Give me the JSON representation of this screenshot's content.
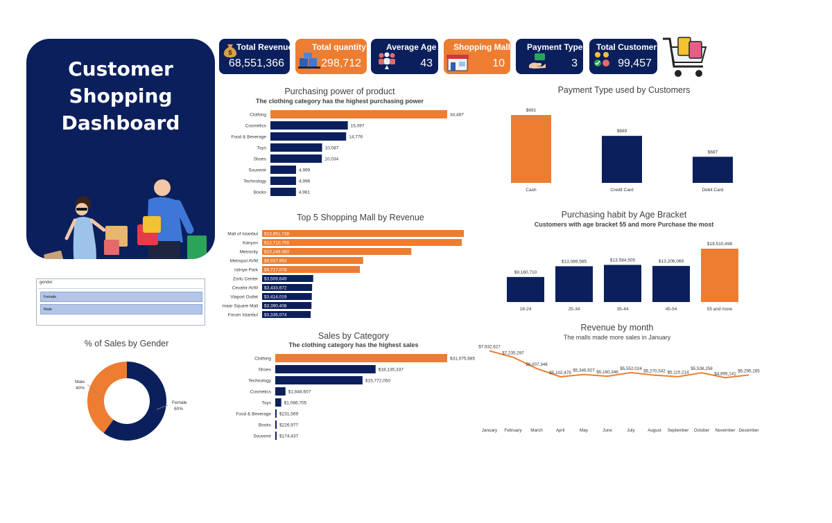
{
  "dashboard": {
    "title_line1": "Customer Shopping",
    "title_line2": "Dashboard"
  },
  "kpis": [
    {
      "label": "Total Revenue",
      "value": "68,551,366",
      "color": "#0b1f5c",
      "icon": "money-bag-icon"
    },
    {
      "label": "Total quantity",
      "value": "298,712",
      "color": "#ed7d31",
      "icon": "boxes-icon"
    },
    {
      "label": "Average Age",
      "value": "43",
      "color": "#0b1f5c",
      "icon": "people-age-icon"
    },
    {
      "label": "Shopping Mall",
      "value": "10",
      "color": "#ed7d31",
      "icon": "mall-icon"
    },
    {
      "label": "Payment Type",
      "value": "3",
      "color": "#0b1f5c",
      "icon": "payment-hand-icon"
    },
    {
      "label": "Total Customers",
      "value": "99,457",
      "color": "#0b1f5c",
      "icon": "customers-icon"
    }
  ],
  "charts": {
    "purchasing_power": {
      "title": "Purchasing power of product",
      "subtitle": "The clothing category has the highest purchasing power"
    },
    "payment_type": {
      "title": "Payment Type used by Customers"
    },
    "top_malls": {
      "title": "Top 5 Shopping Mall by Revenue"
    },
    "age_bracket": {
      "title": "Purchasing habit by Age Bracket",
      "subtitle": "Customers with age bracket 55 and more Purchase the most"
    },
    "gender": {
      "title": "% of Sales by Gender"
    },
    "sales_category": {
      "title": "Sales by Category",
      "subtitle": "The clothing category has the highest sales"
    },
    "revenue_month": {
      "title": "Revenue by month",
      "subtitle": "The malls made more sales in January"
    }
  },
  "slicer": {
    "header": "gender",
    "items": [
      "Female",
      "Male"
    ]
  },
  "colors": {
    "navy": "#0b1f5c",
    "orange": "#ed7d31"
  },
  "chart_data": [
    {
      "id": "purchasing_power",
      "type": "bar",
      "orientation": "horizontal",
      "categories": [
        "Clothing",
        "Cosmetics",
        "Food & Beverage",
        "Toys",
        "Shoes",
        "Souvenir",
        "Technology",
        "Books"
      ],
      "values": [
        34487,
        15097,
        14776,
        10087,
        10034,
        4999,
        4996,
        4981
      ],
      "labels": [
        "34,487",
        "15,097",
        "14,776",
        "10,087",
        "10,034",
        "4,999",
        "4,996",
        "4,981"
      ],
      "highlight_index": 0,
      "title": "Purchasing power of product",
      "subtitle": "The clothing category has the highest purchasing power"
    },
    {
      "id": "payment_type",
      "type": "bar",
      "orientation": "vertical",
      "categories": [
        "Cash",
        "Credit Card",
        "Debit Card"
      ],
      "values": [
        691,
        689,
        687
      ],
      "labels": [
        "$691",
        "$689",
        "$687"
      ],
      "highlight_index": 0,
      "title": "Payment Type used by Customers"
    },
    {
      "id": "top_malls",
      "type": "bar",
      "orientation": "horizontal",
      "categories": [
        "Mall of Istanbul",
        "Kanyon",
        "Metrocity",
        "Metropol AVM",
        "Istinye Park",
        "Zorlu Center",
        "Cevahir AVM",
        "Viaport Outlet",
        "Emaar Square Mall",
        "Forum Istanbul"
      ],
      "values": [
        13851738,
        13710755,
        10249980,
        6937993,
        6717078,
        3509649,
        3433672,
        3414019,
        3390408,
        3336074
      ],
      "labels": [
        "$13,851,738",
        "$13,710,755",
        "$10,249,980",
        "$6,937,993",
        "$6,717,078",
        "$3,509,649",
        "$3,433,672",
        "$3,414,019",
        "$3,390,408",
        "$3,336,074"
      ],
      "highlight_count": 5,
      "title": "Top 5 Shopping Mall by Revenue"
    },
    {
      "id": "age_bracket",
      "type": "bar",
      "orientation": "vertical",
      "categories": [
        "18-24",
        "25-34",
        "35-44",
        "45-54",
        "55 and more"
      ],
      "values": [
        9160710,
        13089585,
        13584505,
        13206069,
        19510498
      ],
      "labels": [
        "$9,160,710",
        "$13,089,585",
        "$13,584,505",
        "$13,206,069",
        "$19,510,498"
      ],
      "highlight_index": 4,
      "title": "Purchasing habit by Age Bracket",
      "subtitle": "Customers with age bracket 55 and more Purchase the most"
    },
    {
      "id": "gender",
      "type": "pie",
      "variant": "donut",
      "categories": [
        "Female",
        "Male"
      ],
      "values": [
        60,
        40
      ],
      "labels": [
        "60%",
        "40%"
      ],
      "title": "% of Sales by Gender"
    },
    {
      "id": "sales_category",
      "type": "bar",
      "orientation": "horizontal",
      "categories": [
        "Clothing",
        "Shoes",
        "Technology",
        "Cosmetics",
        "Toys",
        "Food & Beverage",
        "Books",
        "Souvenir"
      ],
      "values": [
        31075685,
        18135337,
        15772050,
        1848607,
        1086705,
        231569,
        226977,
        174437
      ],
      "labels": [
        "$31,075,685",
        "$18,135,337",
        "$15,772,050",
        "$1,848,607",
        "$1,086,705",
        "$231,569",
        "$226,977",
        "$174,437"
      ],
      "highlight_index": 0,
      "title": "Sales by Category",
      "subtitle": "The clothing category has the highest sales"
    },
    {
      "id": "revenue_month",
      "type": "line",
      "categories": [
        "January",
        "February",
        "March",
        "April",
        "May",
        "June",
        "July",
        "August",
        "September",
        "October",
        "November",
        "December"
      ],
      "values": [
        7932627,
        7235297,
        6007346,
        5102479,
        5346927,
        5160346,
        5552024,
        5270542,
        5115214,
        5538258,
        4995141,
        5295165
      ],
      "labels": [
        "$7,932,627",
        "$7,235,297",
        "$6,007,346",
        "$5,102,479",
        "$5,346,927",
        "$5,160,346",
        "$5,552,024",
        "$5,270,542",
        "$5,115,214",
        "$5,538,258",
        "$4,995,141",
        "$5,295,165"
      ],
      "title": "Revenue by month",
      "subtitle": "The malls made more sales in January"
    }
  ]
}
